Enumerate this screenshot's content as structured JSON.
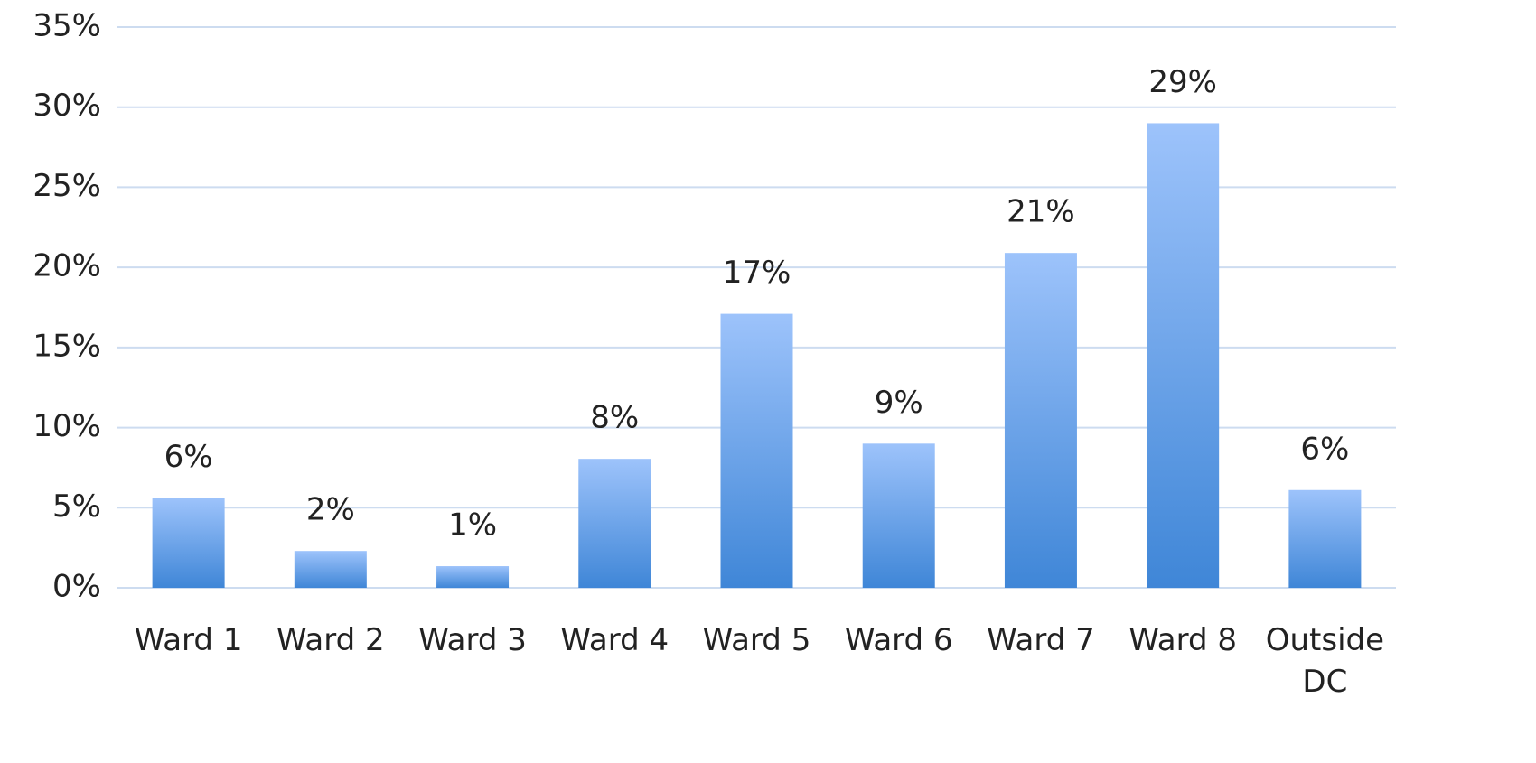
{
  "chart_data": {
    "type": "bar",
    "categories": [
      "Ward 1",
      "Ward 2",
      "Ward 3",
      "Ward 4",
      "Ward 5",
      "Ward 6",
      "Ward 7",
      "Ward 8",
      "Outside DC"
    ],
    "values": [
      5.6,
      2.3,
      1.35,
      8.05,
      17.1,
      9.0,
      20.9,
      29.0,
      6.1
    ],
    "value_labels": [
      "6%",
      "2%",
      "1%",
      "8%",
      "17%",
      "9%",
      "21%",
      "29%",
      "6%"
    ],
    "color": [
      "#9dc3fb",
      "#3f86d7"
    ],
    "ylim": [
      0,
      35
    ],
    "yticks": [
      {
        "value": 0,
        "label": "0%"
      },
      {
        "value": 5,
        "label": "5%"
      },
      {
        "value": 10,
        "label": "10%"
      },
      {
        "value": 15,
        "label": "15%"
      },
      {
        "value": 20,
        "label": "20%"
      },
      {
        "value": 25,
        "label": "25%"
      },
      {
        "value": 30,
        "label": "30%"
      },
      {
        "value": 35,
        "label": "35%"
      }
    ],
    "grid": true
  }
}
